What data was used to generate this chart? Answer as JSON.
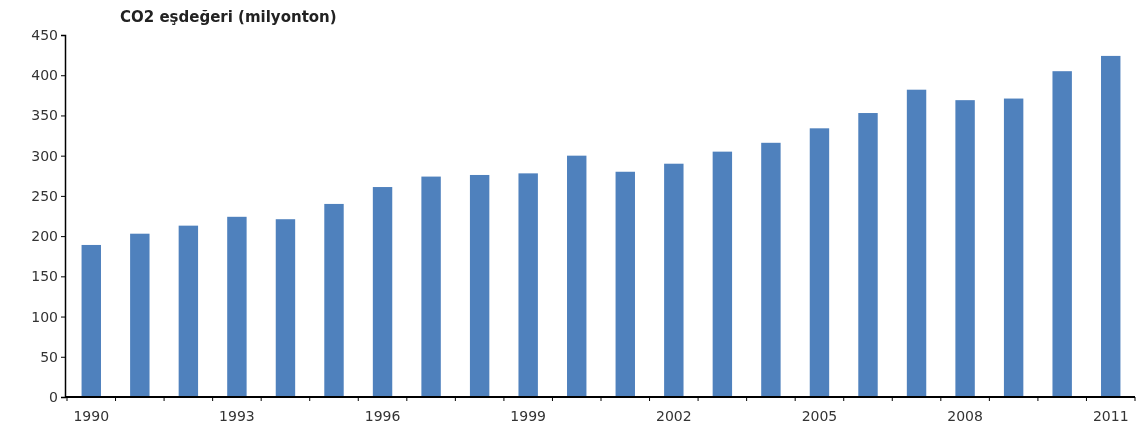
{
  "chart_data": {
    "type": "bar",
    "title": "CO2 eşdeğeri (milyonton)",
    "categories": [
      "1990",
      null,
      null,
      "1993",
      null,
      null,
      "1996",
      null,
      null,
      "1999",
      null,
      null,
      "2002",
      null,
      null,
      "2005",
      null,
      null,
      "2008",
      null,
      null,
      "2011"
    ],
    "values": [
      189,
      203,
      213,
      224,
      221,
      240,
      261,
      274,
      276,
      278,
      300,
      280,
      290,
      305,
      316,
      334,
      353,
      382,
      369,
      371,
      405,
      424
    ],
    "color": "#4f81bd",
    "ylim": [
      0,
      450
    ],
    "yticks": [
      0,
      50,
      100,
      150,
      200,
      250,
      300,
      350,
      400,
      450
    ],
    "grid": false
  }
}
